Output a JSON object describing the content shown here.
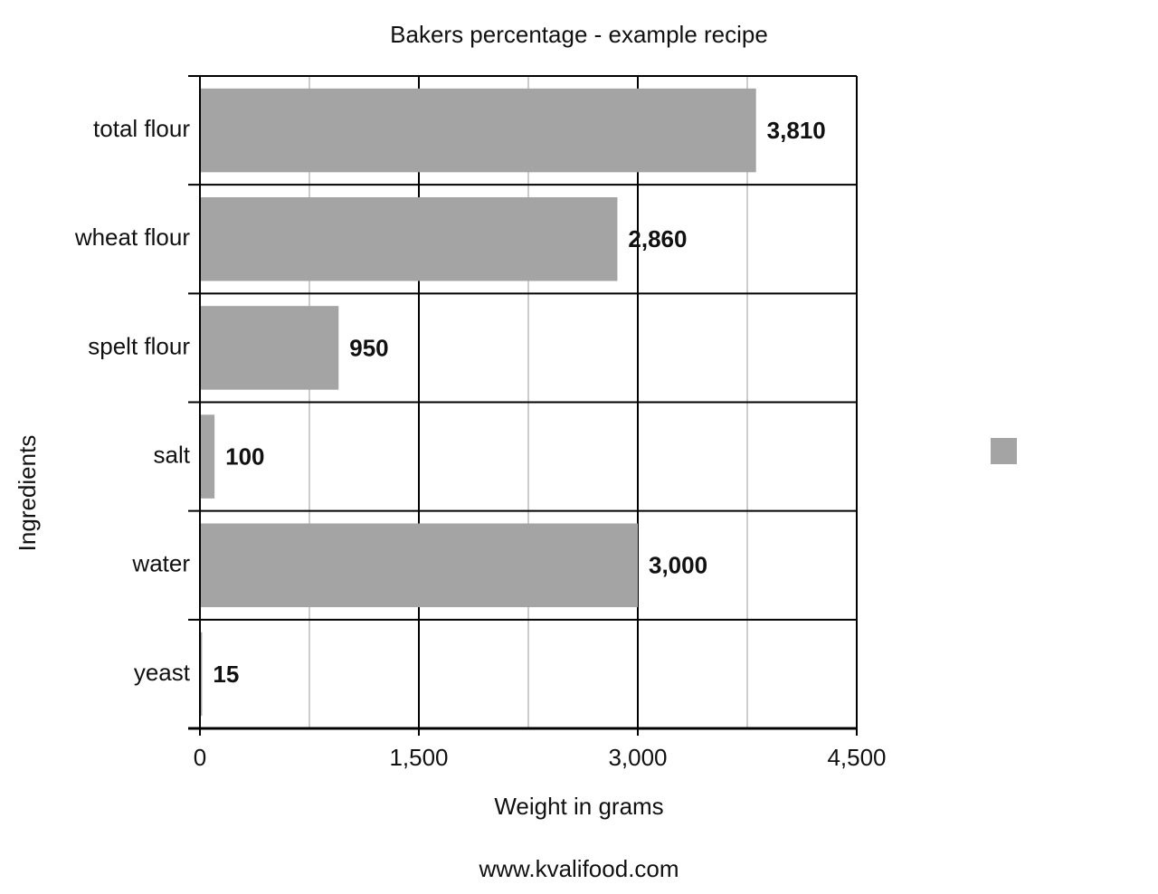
{
  "chart_data": {
    "type": "hbar",
    "title": "Bakers percentage - example recipe",
    "categories": [
      "total flour",
      "wheat flour",
      "spelt flour",
      "salt",
      "water",
      "yeast"
    ],
    "values": [
      3810,
      2860,
      950,
      100,
      3000,
      15
    ],
    "value_labels": [
      "3,810",
      "2,860",
      "950",
      "100",
      "3,000",
      "15"
    ],
    "color": "#a4a4a4",
    "xlim": [
      0,
      4500
    ],
    "xticks": [
      0,
      {
        "value": 1500,
        "label": "1,500"
      },
      {
        "value": 3000,
        "label": "3,000"
      },
      {
        "value": 4500,
        "label": "4,500"
      }
    ],
    "minor_gridlines": [
      750,
      2250,
      3750
    ],
    "x_label": "Weight in grams",
    "y_label": "Ingredients",
    "footer": "www.kvalifood.com",
    "legend": "right",
    "grid": true
  }
}
